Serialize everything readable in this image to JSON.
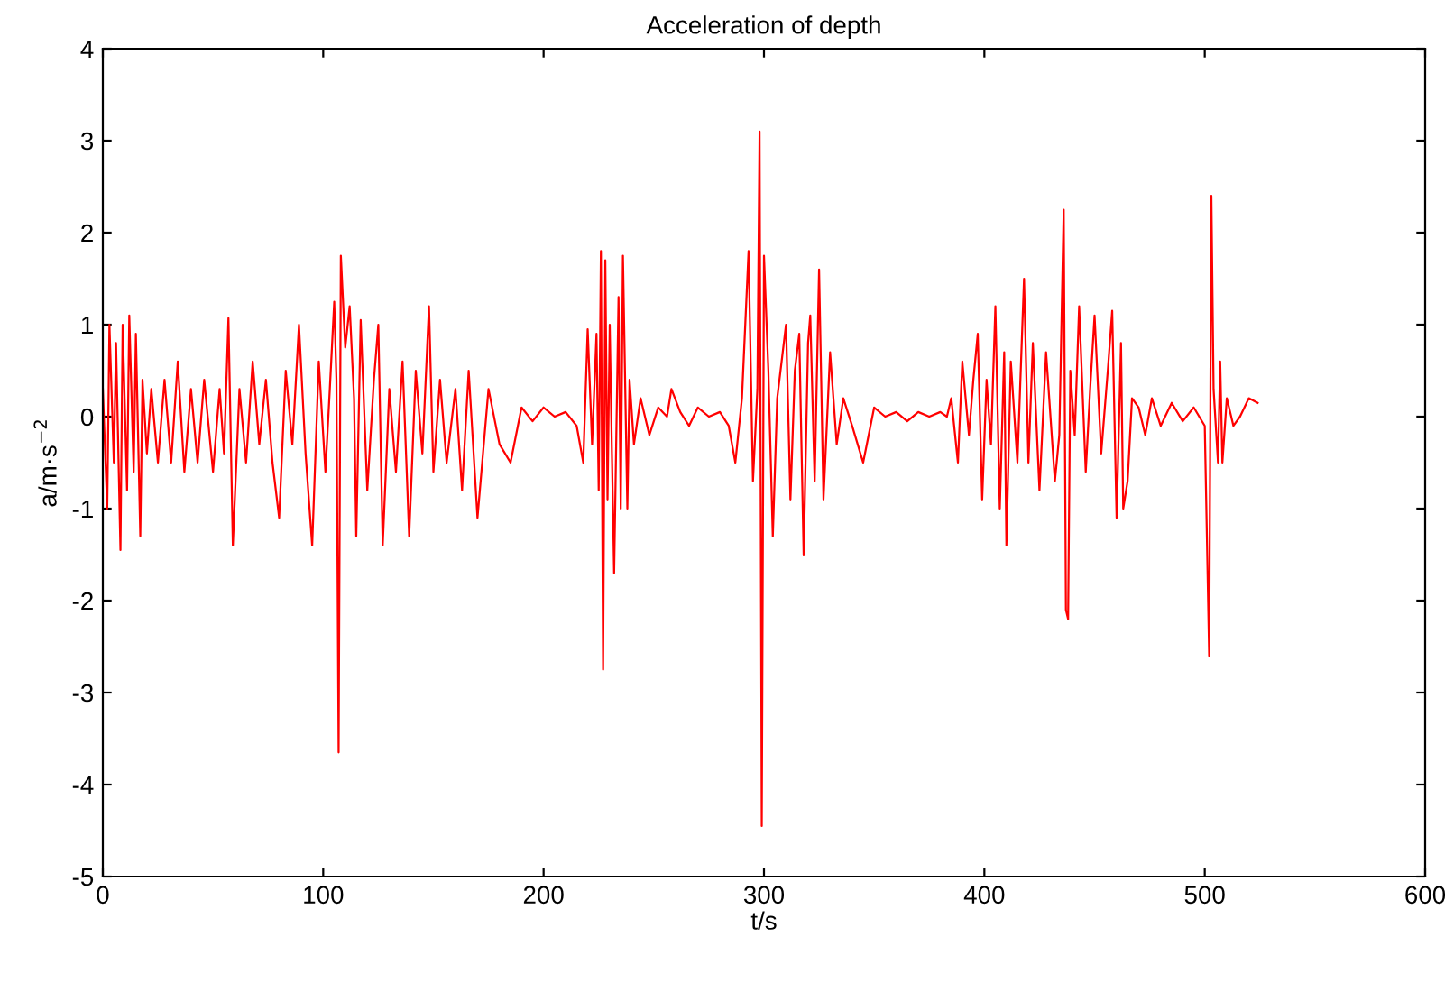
{
  "chart_data": {
    "type": "line",
    "title": "Acceleration of depth",
    "xlabel": "t/s",
    "ylabel": "a/m·s$^{−2}$",
    "xlim": [
      0,
      600
    ],
    "ylim": [
      -5,
      4
    ],
    "xticks": [
      0,
      100,
      200,
      300,
      400,
      500,
      600
    ],
    "yticks": [
      -5,
      -4,
      -3,
      -2,
      -1,
      0,
      1,
      2,
      3,
      4
    ],
    "grid": false,
    "marker": "none",
    "line_style": "solid",
    "series": [
      {
        "color": "#ff0000",
        "x": [
          0,
          2,
          3,
          5,
          6,
          8,
          9,
          11,
          12,
          14,
          15,
          17,
          18,
          20,
          22,
          25,
          28,
          31,
          34,
          37,
          40,
          43,
          46,
          50,
          53,
          55,
          57,
          59,
          62,
          65,
          68,
          71,
          74,
          77,
          80,
          83,
          86,
          89,
          92,
          95,
          98,
          101,
          103,
          105,
          106,
          107,
          108,
          110,
          112,
          114,
          115,
          117,
          120,
          123,
          125,
          127,
          130,
          133,
          136,
          139,
          142,
          145,
          148,
          150,
          153,
          156,
          160,
          163,
          166,
          170,
          175,
          180,
          185,
          190,
          195,
          200,
          205,
          210,
          215,
          218,
          220,
          222,
          224,
          225,
          226,
          227,
          228,
          229,
          230,
          231,
          232,
          234,
          235,
          236,
          238,
          239,
          241,
          244,
          248,
          252,
          256,
          258,
          262,
          266,
          270,
          275,
          280,
          284,
          287,
          290,
          293,
          295,
          297,
          298,
          299,
          300,
          302,
          304,
          306,
          308,
          310,
          312,
          314,
          316,
          318,
          320,
          321,
          323,
          325,
          327,
          330,
          333,
          336,
          340,
          345,
          350,
          355,
          360,
          365,
          370,
          375,
          380,
          383,
          385,
          388,
          390,
          393,
          395,
          397,
          399,
          401,
          403,
          405,
          407,
          409,
          410,
          412,
          415,
          418,
          420,
          422,
          425,
          428,
          432,
          434,
          436,
          437,
          438,
          439,
          441,
          443,
          446,
          448,
          450,
          453,
          456,
          458,
          460,
          462,
          463,
          465,
          467,
          470,
          473,
          476,
          480,
          485,
          490,
          495,
          500,
          502,
          503,
          504,
          506,
          507,
          508,
          510,
          513,
          516,
          520,
          524
        ],
        "values": [
          0.3,
          -1.0,
          1.0,
          -0.5,
          0.8,
          -1.45,
          1.0,
          -0.8,
          1.1,
          -0.6,
          0.9,
          -1.3,
          0.4,
          -0.4,
          0.3,
          -0.5,
          0.4,
          -0.5,
          0.6,
          -0.6,
          0.3,
          -0.5,
          0.4,
          -0.6,
          0.3,
          -0.4,
          1.07,
          -1.4,
          0.3,
          -0.5,
          0.6,
          -0.3,
          0.4,
          -0.5,
          -1.1,
          0.5,
          -0.3,
          1.0,
          -0.4,
          -1.4,
          0.6,
          -0.6,
          0.3,
          1.25,
          0.4,
          -3.65,
          1.75,
          0.75,
          1.2,
          0.2,
          -1.3,
          1.05,
          -0.8,
          0.4,
          1.0,
          -1.4,
          0.3,
          -0.6,
          0.6,
          -1.3,
          0.5,
          -0.4,
          1.2,
          -0.6,
          0.4,
          -0.5,
          0.3,
          -0.8,
          0.5,
          -1.1,
          0.3,
          -0.3,
          -0.5,
          0.1,
          -0.05,
          0.1,
          0.0,
          0.05,
          -0.1,
          -0.5,
          0.95,
          -0.3,
          0.9,
          -0.8,
          1.8,
          -2.75,
          1.7,
          -0.9,
          1.0,
          -0.4,
          -1.7,
          1.3,
          -1.0,
          1.75,
          -1.0,
          0.4,
          -0.3,
          0.2,
          -0.2,
          0.1,
          0.0,
          0.3,
          0.05,
          -0.1,
          0.1,
          0.0,
          0.05,
          -0.1,
          -0.5,
          0.2,
          1.8,
          -0.7,
          0.3,
          3.1,
          -4.45,
          1.75,
          0.5,
          -1.3,
          0.2,
          0.6,
          1.0,
          -0.9,
          0.5,
          0.9,
          -1.5,
          0.8,
          1.1,
          -0.7,
          1.6,
          -0.9,
          0.7,
          -0.3,
          0.2,
          -0.1,
          -0.5,
          0.1,
          0.0,
          0.05,
          -0.05,
          0.05,
          0.0,
          0.05,
          0.0,
          0.2,
          -0.5,
          0.6,
          -0.2,
          0.4,
          0.9,
          -0.9,
          0.4,
          -0.3,
          1.2,
          -1.0,
          0.7,
          -1.4,
          0.6,
          -0.5,
          1.5,
          -0.5,
          0.8,
          -0.8,
          0.7,
          -0.7,
          -0.2,
          2.25,
          -2.1,
          -2.2,
          0.5,
          -0.2,
          1.2,
          -0.6,
          0.3,
          1.1,
          -0.4,
          0.5,
          1.15,
          -1.1,
          0.8,
          -1.0,
          -0.7,
          0.2,
          0.1,
          -0.2,
          0.2,
          -0.1,
          0.15,
          -0.05,
          0.1,
          -0.1,
          -2.6,
          2.4,
          0.3,
          -0.5,
          0.6,
          -0.5,
          0.2,
          -0.1,
          0.0,
          0.2,
          0.15
        ]
      }
    ]
  }
}
